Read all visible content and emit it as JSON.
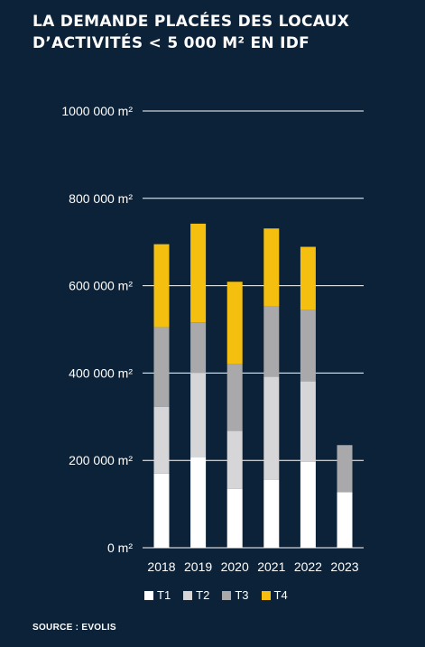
{
  "title_lines": [
    "LA DEMANDE PLACÉES DES LOCAUX",
    "D’ACTIVITÉS < 5 000 M² EN IDF"
  ],
  "source": "SOURCE : EVOLIS",
  "colors": {
    "background": "#0c2238",
    "gridline": "#ffffff",
    "T1": "#ffffff",
    "T2": "#d6d6d8",
    "T3": "#a9a9ab",
    "T4": "#f5bf0f"
  },
  "chart_data": {
    "type": "bar",
    "stacked": true,
    "categories": [
      "2018",
      "2019",
      "2020",
      "2021",
      "2022",
      "2023"
    ],
    "series": [
      {
        "name": "T1",
        "values": [
          170000,
          208000,
          135000,
          155000,
          197000,
          127000
        ]
      },
      {
        "name": "T2",
        "values": [
          153000,
          192000,
          133000,
          237000,
          184000,
          0
        ]
      },
      {
        "name": "T3",
        "values": [
          182000,
          116000,
          152000,
          160000,
          163000,
          108000
        ]
      },
      {
        "name": "T4",
        "values": [
          190000,
          226000,
          189000,
          179000,
          145000,
          0
        ]
      }
    ],
    "ylim": [
      0,
      1000000
    ],
    "yticks": [
      0,
      200000,
      400000,
      600000,
      800000,
      1000000
    ],
    "ytick_labels": [
      "0 m²",
      "200 000 m²",
      "400 000 m²",
      "600 000 m²",
      "800 000 m²",
      "1000 000 m²"
    ],
    "grid": true,
    "legend_position": "bottom"
  }
}
